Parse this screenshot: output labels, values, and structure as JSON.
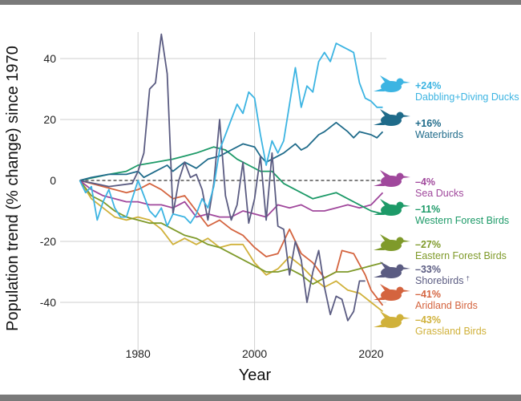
{
  "chart_data": {
    "type": "line",
    "title": "",
    "xlabel": "Year",
    "ylabel": "Population trend (% change) since 1970",
    "xlim": [
      1970,
      2022
    ],
    "ylim": [
      -50,
      48
    ],
    "xticks": [
      1980,
      2000,
      2020
    ],
    "yticks": [
      40,
      20,
      0,
      -20,
      -40
    ],
    "grid": true,
    "baseline": 0,
    "legend_placement": "right",
    "series": [
      {
        "name": "Dabbling+Diving Ducks",
        "label": "+24%",
        "color": "#3cb4e2",
        "icon": "duck-flying-icon",
        "x": [
          1970,
          1971,
          1972,
          1973,
          1974,
          1975,
          1976,
          1977,
          1978,
          1980,
          1981,
          1982,
          1983,
          1984,
          1985,
          1986,
          1988,
          1989,
          1990,
          1991,
          1992,
          1993,
          1994,
          1995,
          1996,
          1997,
          1998,
          1999,
          2000,
          2001,
          2002,
          2003,
          2004,
          2005,
          2006,
          2007,
          2008,
          2009,
          2010,
          2011,
          2012,
          2013,
          2014,
          2015,
          2016,
          2017,
          2018,
          2019,
          2020,
          2021,
          2022
        ],
        "y": [
          0,
          -4,
          -2,
          -13,
          -7,
          -3,
          -9,
          -12,
          -12,
          0,
          -5,
          -10,
          -12,
          -9,
          -15,
          -11,
          -12,
          -14,
          -11,
          -6,
          -9,
          -2,
          10,
          15,
          20,
          25,
          22,
          29,
          27,
          15,
          5,
          13,
          9,
          13,
          25,
          37,
          24,
          31,
          29,
          39,
          42,
          39,
          45,
          44,
          43,
          42,
          32,
          27,
          26,
          24,
          24
        ]
      },
      {
        "name": "Waterbirds",
        "label": "+16%",
        "color": "#1f6b8a",
        "icon": "wading-bird-icon",
        "x": [
          1970,
          1972,
          1975,
          1978,
          1980,
          1981,
          1983,
          1985,
          1986,
          1988,
          1990,
          1992,
          1994,
          1996,
          1998,
          2000,
          2001,
          2002,
          2003,
          2005,
          2007,
          2008,
          2009,
          2011,
          2012,
          2014,
          2016,
          2017,
          2018,
          2020,
          2021,
          2022
        ],
        "y": [
          0,
          1,
          2,
          2,
          3,
          1,
          3,
          5,
          3,
          6,
          4,
          7,
          8,
          10,
          12,
          11,
          8,
          6,
          7,
          9,
          12,
          10,
          11,
          15,
          16,
          19,
          16,
          14,
          16,
          15,
          14,
          16
        ]
      },
      {
        "name": "Sea Ducks",
        "label": "–4%",
        "color": "#a0489c",
        "icon": "sea-duck-icon",
        "x": [
          1970,
          1972,
          1974,
          1976,
          1978,
          1980,
          1982,
          1984,
          1986,
          1988,
          1990,
          1992,
          1994,
          1996,
          1998,
          2000,
          2002,
          2004,
          2006,
          2008,
          2010,
          2012,
          2014,
          2016,
          2018,
          2020,
          2022
        ],
        "y": [
          0,
          -3,
          -5,
          -6,
          -7,
          -7,
          -8,
          -8,
          -9,
          -7,
          -12,
          -11,
          -12,
          -12,
          -10,
          -11,
          -12,
          -8,
          -9,
          -8,
          -10,
          -10,
          -9,
          -8,
          -9,
          -8,
          -4
        ]
      },
      {
        "name": "Western Forest Birds",
        "label": "–11%",
        "color": "#1d9a68",
        "icon": "hummingbird-icon",
        "x": [
          1970,
          1975,
          1978,
          1980,
          1983,
          1986,
          1988,
          1990,
          1993,
          1995,
          1997,
          1999,
          2001,
          2003,
          2005,
          2007,
          2010,
          2012,
          2014,
          2016,
          2018,
          2020,
          2022
        ],
        "y": [
          0,
          2,
          3,
          5,
          6,
          7,
          8,
          9,
          11,
          10,
          7,
          5,
          3,
          3,
          -1,
          -3,
          -6,
          -5,
          -4,
          -6,
          -8,
          -10,
          -11
        ]
      },
      {
        "name": "Eastern Forest Birds",
        "label": "–27%",
        "color": "#7f9a2a",
        "icon": "songbird-icon",
        "x": [
          1970,
          1972,
          1974,
          1976,
          1978,
          1980,
          1982,
          1984,
          1986,
          1988,
          1990,
          1992,
          1994,
          1996,
          1998,
          2000,
          2002,
          2004,
          2006,
          2008,
          2010,
          2012,
          2014,
          2016,
          2018,
          2020,
          2022
        ],
        "y": [
          0,
          -5,
          -7,
          -10,
          -12,
          -13,
          -14,
          -14,
          -16,
          -18,
          -19,
          -21,
          -22,
          -24,
          -26,
          -28,
          -30,
          -30,
          -29,
          -31,
          -34,
          -32,
          -30,
          -30,
          -29,
          -28,
          -27
        ]
      },
      {
        "name": "Shorebirds",
        "footnote": "†",
        "label": "–33%",
        "color": "#5b5c82",
        "icon": "shorebird-icon",
        "x": [
          1970,
          1975,
          1979,
          1980,
          1981,
          1982,
          1983,
          1984,
          1985,
          1986,
          1987,
          1988,
          1989,
          1990,
          1991,
          1992,
          1993,
          1994,
          1995,
          1996,
          1997,
          1998,
          1999,
          2000,
          2001,
          2002,
          2003,
          2004,
          2005,
          2006,
          2007,
          2008,
          2009,
          2010,
          2011,
          2012,
          2013,
          2014,
          2015,
          2016,
          2017,
          2018,
          2019
        ],
        "y": [
          0,
          -2,
          -1,
          3,
          9,
          30,
          32,
          48,
          35,
          -11,
          0,
          6,
          1,
          2,
          -3,
          -13,
          -1,
          20,
          -5,
          -13,
          -8,
          6,
          -14,
          -6,
          8,
          -13,
          9,
          -15,
          -16,
          -31,
          -20,
          -26,
          -40,
          -30,
          -23,
          -35,
          -44,
          -38,
          -39,
          -46,
          -43,
          -33,
          -33
        ]
      },
      {
        "name": "Aridland Birds",
        "label": "–41%",
        "color": "#d4643f",
        "icon": "aridland-bird-icon",
        "x": [
          1970,
          1972,
          1974,
          1976,
          1978,
          1980,
          1982,
          1984,
          1986,
          1988,
          1990,
          1992,
          1994,
          1996,
          1998,
          2000,
          2002,
          2004,
          2006,
          2008,
          2010,
          2012,
          2014,
          2015,
          2017,
          2019,
          2020,
          2022
        ],
        "y": [
          0,
          -1,
          -2,
          -3,
          -4,
          -3,
          -1,
          -3,
          -6,
          -5,
          -10,
          -15,
          -13,
          -16,
          -18,
          -22,
          -25,
          -24,
          -16,
          -24,
          -27,
          -32,
          -30,
          -23,
          -24,
          -31,
          -36,
          -41
        ]
      },
      {
        "name": "Grassland Birds",
        "label": "–43%",
        "color": "#d0b13a",
        "icon": "meadowlark-icon",
        "x": [
          1970,
          1972,
          1974,
          1976,
          1978,
          1980,
          1982,
          1984,
          1986,
          1988,
          1990,
          1992,
          1994,
          1996,
          1998,
          2000,
          2002,
          2004,
          2006,
          2008,
          2010,
          2012,
          2014,
          2016,
          2018,
          2020,
          2022
        ],
        "y": [
          0,
          -6,
          -9,
          -12,
          -13,
          -12,
          -13,
          -16,
          -21,
          -19,
          -21,
          -19,
          -22,
          -21,
          -21,
          -27,
          -31,
          -29,
          -25,
          -28,
          -32,
          -35,
          -33,
          -36,
          -37,
          -40,
          -43
        ]
      }
    ]
  }
}
